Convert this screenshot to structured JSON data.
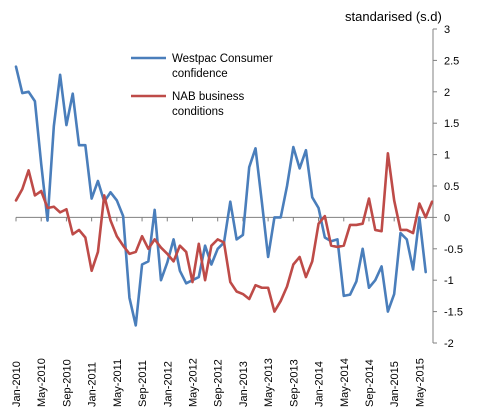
{
  "chart_data": {
    "type": "line",
    "title": "",
    "subtitle": "",
    "xlabel": "",
    "ylabel": "standarised (s.d)",
    "ylim": [
      -2,
      3
    ],
    "yticks": [
      -2,
      -1.5,
      -1,
      -0.5,
      0,
      0.5,
      1,
      1.5,
      2,
      2.5,
      3
    ],
    "ytick_labels": [
      "-2",
      "-1.5",
      "-1",
      "-0.5",
      "0",
      "0.5",
      "1",
      "1.5",
      "2",
      "2.5",
      "3"
    ],
    "y_axis_side": "right",
    "grid": false,
    "legend_placement": "top-center",
    "x_start": "Jan-2010",
    "x_ticks": [
      "Jan-2010",
      "May-2010",
      "Sep-2010",
      "Jan-2011",
      "May-2011",
      "Sep-2011",
      "Jan-2012",
      "May-2012",
      "Sep-2012",
      "Jan-2013",
      "May-2013",
      "Sep-2013",
      "Jan-2014",
      "May-2014",
      "Sep-2014",
      "Jan-2015",
      "May-2015"
    ],
    "series": [
      {
        "name": "Westpac Consumer confidence",
        "color": "#4a7ebb",
        "values": [
          2.4,
          1.98,
          2.0,
          1.85,
          0.85,
          -0.05,
          1.45,
          2.27,
          1.47,
          1.97,
          1.15,
          1.15,
          0.3,
          0.58,
          0.25,
          0.4,
          0.27,
          0.02,
          -1.28,
          -1.72,
          -0.75,
          -0.7,
          0.12,
          -1.0,
          -0.72,
          -0.35,
          -0.85,
          -1.05,
          -1.0,
          -0.95,
          -0.45,
          -0.75,
          -0.5,
          -0.4,
          0.25,
          -0.35,
          -0.28,
          0.8,
          1.1,
          0.25,
          -0.63,
          0.0,
          0.0,
          0.5,
          1.12,
          0.78,
          1.07,
          0.32,
          0.15,
          -0.32,
          -0.38,
          -0.35,
          -1.25,
          -1.23,
          -1.02,
          -0.5,
          -1.12,
          -1.0,
          -0.78,
          -1.5,
          -1.22,
          -0.25,
          -0.35,
          -0.83,
          0.0,
          -0.87
        ]
      },
      {
        "name": "NAB business conditions",
        "color": "#be4b48",
        "values": [
          0.27,
          0.45,
          0.75,
          0.35,
          0.42,
          0.15,
          0.17,
          0.08,
          0.13,
          -0.27,
          -0.2,
          -0.32,
          -0.85,
          -0.55,
          0.35,
          -0.05,
          -0.3,
          -0.45,
          -0.58,
          -0.55,
          -0.3,
          -0.5,
          -0.35,
          -0.48,
          -0.58,
          -0.7,
          -0.45,
          -0.55,
          -1.03,
          -0.42,
          -1.0,
          -0.45,
          -0.35,
          -0.4,
          -1.03,
          -1.18,
          -1.22,
          -1.3,
          -1.08,
          -1.12,
          -1.12,
          -1.5,
          -1.33,
          -1.1,
          -0.75,
          -0.63,
          -0.95,
          -0.7,
          -0.1,
          0.02,
          -0.45,
          -0.47,
          -0.45,
          -0.12,
          -0.12,
          -0.1,
          0.3,
          -0.2,
          -0.22,
          1.02,
          0.27,
          -0.2,
          -0.2,
          -0.25,
          0.22,
          0.0,
          0.25
        ]
      }
    ]
  }
}
